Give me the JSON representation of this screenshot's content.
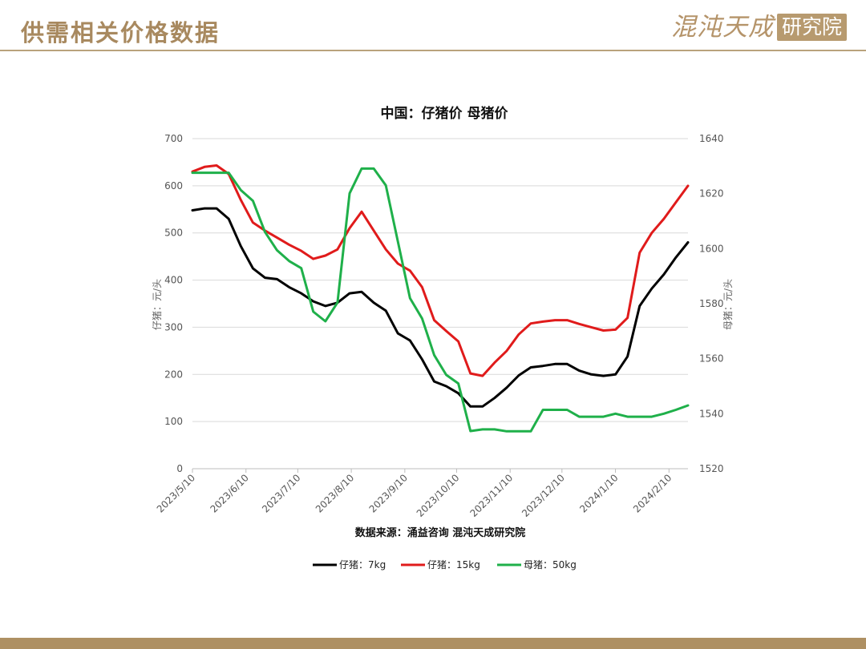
{
  "header": {
    "title": "供需相关价格数据",
    "logo_script": "混沌天成",
    "logo_box": "研究院"
  },
  "colors": {
    "accent": "#a8895f",
    "series_piglet_7": "#000000",
    "series_piglet_15": "#e01b1b",
    "series_sow_50": "#1fb04a"
  },
  "chart_data": {
    "type": "line",
    "title": "中国：仔猪价 母猪价",
    "ylabel": "仔猪：元/头",
    "y2label": "母猪：元/头",
    "ylim": [
      0,
      700
    ],
    "y2lim": [
      1520,
      1640
    ],
    "y_ticks": [
      "0",
      "100",
      "200",
      "300",
      "400",
      "500",
      "600",
      "700"
    ],
    "y2_ticks": [
      "1520",
      "1540",
      "1560",
      "1580",
      "1600",
      "1620",
      "1640"
    ],
    "x_ticks": [
      "2023/5/10",
      "2023/6/10",
      "2023/7/10",
      "2023/8/10",
      "2023/9/10",
      "2023/10/10",
      "2023/11/10",
      "2023/12/10",
      "2024/1/10",
      "2024/2/10"
    ],
    "source": "数据来源：涌益咨询 混沌天成研究院",
    "grid": true,
    "legend_position": "bottom",
    "series": [
      {
        "name": "仔猪：7kg",
        "axis": "left",
        "color": "#000000",
        "points": [
          [
            "2023-05-10",
            548
          ],
          [
            "2023-05-17",
            552
          ],
          [
            "2023-05-24",
            552
          ],
          [
            "2023-05-31",
            530
          ],
          [
            "2023-06-07",
            472
          ],
          [
            "2023-06-14",
            425
          ],
          [
            "2023-06-21",
            405
          ],
          [
            "2023-06-28",
            402
          ],
          [
            "2023-07-05",
            385
          ],
          [
            "2023-07-12",
            372
          ],
          [
            "2023-07-19",
            355
          ],
          [
            "2023-07-26",
            345
          ],
          [
            "2023-08-02",
            352
          ],
          [
            "2023-08-09",
            372
          ],
          [
            "2023-08-16",
            375
          ],
          [
            "2023-08-23",
            352
          ],
          [
            "2023-08-30",
            335
          ],
          [
            "2023-09-06",
            287
          ],
          [
            "2023-09-13",
            272
          ],
          [
            "2023-09-20",
            232
          ],
          [
            "2023-09-27",
            185
          ],
          [
            "2023-10-04",
            175
          ],
          [
            "2023-10-11",
            160
          ],
          [
            "2023-10-18",
            132
          ],
          [
            "2023-10-25",
            132
          ],
          [
            "2023-11-01",
            150
          ],
          [
            "2023-11-08",
            172
          ],
          [
            "2023-11-15",
            198
          ],
          [
            "2023-11-22",
            215
          ],
          [
            "2023-11-29",
            218
          ],
          [
            "2023-12-06",
            222
          ],
          [
            "2023-12-13",
            222
          ],
          [
            "2023-12-20",
            208
          ],
          [
            "2023-12-27",
            200
          ],
          [
            "2024-01-03",
            197
          ],
          [
            "2024-01-10",
            200
          ],
          [
            "2024-01-17",
            238
          ],
          [
            "2024-01-24",
            345
          ],
          [
            "2024-01-31",
            382
          ],
          [
            "2024-02-07",
            412
          ],
          [
            "2024-02-14",
            448
          ],
          [
            "2024-02-21",
            480
          ]
        ]
      },
      {
        "name": "仔猪：15kg",
        "axis": "left",
        "color": "#e01b1b",
        "points": [
          [
            "2023-05-10",
            630
          ],
          [
            "2023-05-17",
            640
          ],
          [
            "2023-05-24",
            643
          ],
          [
            "2023-05-31",
            625
          ],
          [
            "2023-06-07",
            570
          ],
          [
            "2023-06-14",
            522
          ],
          [
            "2023-06-21",
            505
          ],
          [
            "2023-06-28",
            490
          ],
          [
            "2023-07-05",
            475
          ],
          [
            "2023-07-12",
            462
          ],
          [
            "2023-07-19",
            445
          ],
          [
            "2023-07-26",
            452
          ],
          [
            "2023-08-02",
            465
          ],
          [
            "2023-08-09",
            510
          ],
          [
            "2023-08-16",
            545
          ],
          [
            "2023-08-23",
            505
          ],
          [
            "2023-08-30",
            465
          ],
          [
            "2023-09-06",
            435
          ],
          [
            "2023-09-13",
            420
          ],
          [
            "2023-09-20",
            385
          ],
          [
            "2023-09-27",
            315
          ],
          [
            "2023-10-04",
            292
          ],
          [
            "2023-10-11",
            270
          ],
          [
            "2023-10-18",
            202
          ],
          [
            "2023-10-25",
            197
          ],
          [
            "2023-11-01",
            225
          ],
          [
            "2023-11-08",
            250
          ],
          [
            "2023-11-15",
            285
          ],
          [
            "2023-11-22",
            308
          ],
          [
            "2023-11-29",
            312
          ],
          [
            "2023-12-06",
            315
          ],
          [
            "2023-12-13",
            315
          ],
          [
            "2023-12-20",
            307
          ],
          [
            "2023-12-27",
            300
          ],
          [
            "2024-01-03",
            293
          ],
          [
            "2024-01-10",
            295
          ],
          [
            "2024-01-17",
            320
          ],
          [
            "2024-01-24",
            458
          ],
          [
            "2024-01-31",
            500
          ],
          [
            "2024-02-07",
            530
          ],
          [
            "2024-02-14",
            565
          ],
          [
            "2024-02-21",
            600
          ]
        ]
      },
      {
        "name": "母猪：50kg",
        "axis": "right",
        "color": "#1fb04a",
        "points": [
          [
            "2023-05-10",
            1627.6
          ],
          [
            "2023-05-17",
            1627.6
          ],
          [
            "2023-05-24",
            1627.6
          ],
          [
            "2023-05-31",
            1627.6
          ],
          [
            "2023-06-07",
            1621.3
          ],
          [
            "2023-06-14",
            1617.4
          ],
          [
            "2023-06-21",
            1606.1
          ],
          [
            "2023-06-28",
            1599.4
          ],
          [
            "2023-07-05",
            1595.5
          ],
          [
            "2023-07-12",
            1592.9
          ],
          [
            "2023-07-19",
            1577.1
          ],
          [
            "2023-07-26",
            1573.6
          ],
          [
            "2023-08-02",
            1580.4
          ],
          [
            "2023-08-09",
            1620.1
          ],
          [
            "2023-08-16",
            1629.1
          ],
          [
            "2023-08-23",
            1629.1
          ],
          [
            "2023-08-30",
            1623.0
          ],
          [
            "2023-09-06",
            1602.6
          ],
          [
            "2023-09-13",
            1582.0
          ],
          [
            "2023-09-20",
            1574.6
          ],
          [
            "2023-09-27",
            1561.3
          ],
          [
            "2023-10-04",
            1554.1
          ],
          [
            "2023-10-11",
            1551.0
          ],
          [
            "2023-10-18",
            1533.7
          ],
          [
            "2023-10-25",
            1534.3
          ],
          [
            "2023-11-01",
            1534.3
          ],
          [
            "2023-11-08",
            1533.6
          ],
          [
            "2023-11-15",
            1533.6
          ],
          [
            "2023-11-22",
            1533.6
          ],
          [
            "2023-11-29",
            1541.4
          ],
          [
            "2023-12-06",
            1541.4
          ],
          [
            "2023-12-13",
            1541.4
          ],
          [
            "2023-12-20",
            1538.9
          ],
          [
            "2023-12-27",
            1538.9
          ],
          [
            "2024-01-03",
            1538.9
          ],
          [
            "2024-01-10",
            1540.0
          ],
          [
            "2024-01-17",
            1538.9
          ],
          [
            "2024-01-24",
            1538.9
          ],
          [
            "2024-01-31",
            1538.9
          ],
          [
            "2024-02-07",
            1540.0
          ],
          [
            "2024-02-14",
            1541.4
          ],
          [
            "2024-02-21",
            1543.0
          ]
        ]
      }
    ]
  }
}
